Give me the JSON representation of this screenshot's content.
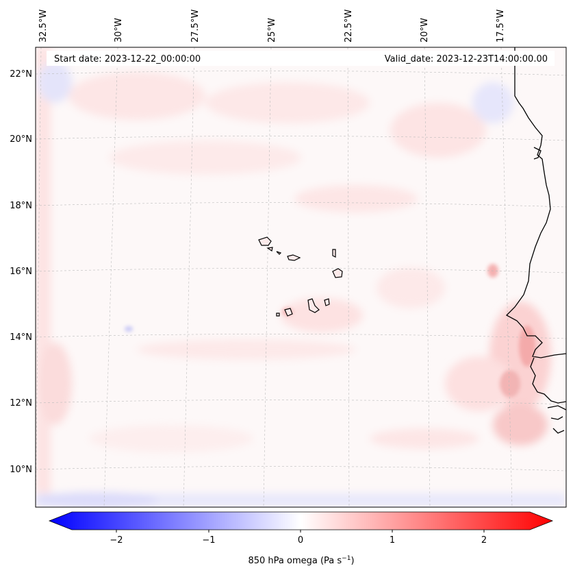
{
  "header": {
    "start_date": "Start date: 2023-12-22_00:00:00",
    "valid_date": "Valid_date: 2023-12-23T14:00:00.00"
  },
  "longitude_labels": [
    "32.5°W",
    "30°W",
    "27.5°W",
    "25°W",
    "22.5°W",
    "20°W",
    "17.5°W"
  ],
  "latitude_labels": [
    "22°N",
    "20°N",
    "18°N",
    "16°N",
    "14°N",
    "12°N",
    "10°N"
  ],
  "colorbar": {
    "ticks": [
      "−2",
      "−1",
      "0",
      "1",
      "2"
    ],
    "label_main": "850 hPa omega (Pa s",
    "label_sup": "−1",
    "label_end": ")",
    "min_color": "#0000ff",
    "mid_color": "#ffffff",
    "max_color": "#ff0000"
  },
  "map": {
    "coastline_color": "#000000",
    "gridline_color": "#bbbbbb"
  }
}
